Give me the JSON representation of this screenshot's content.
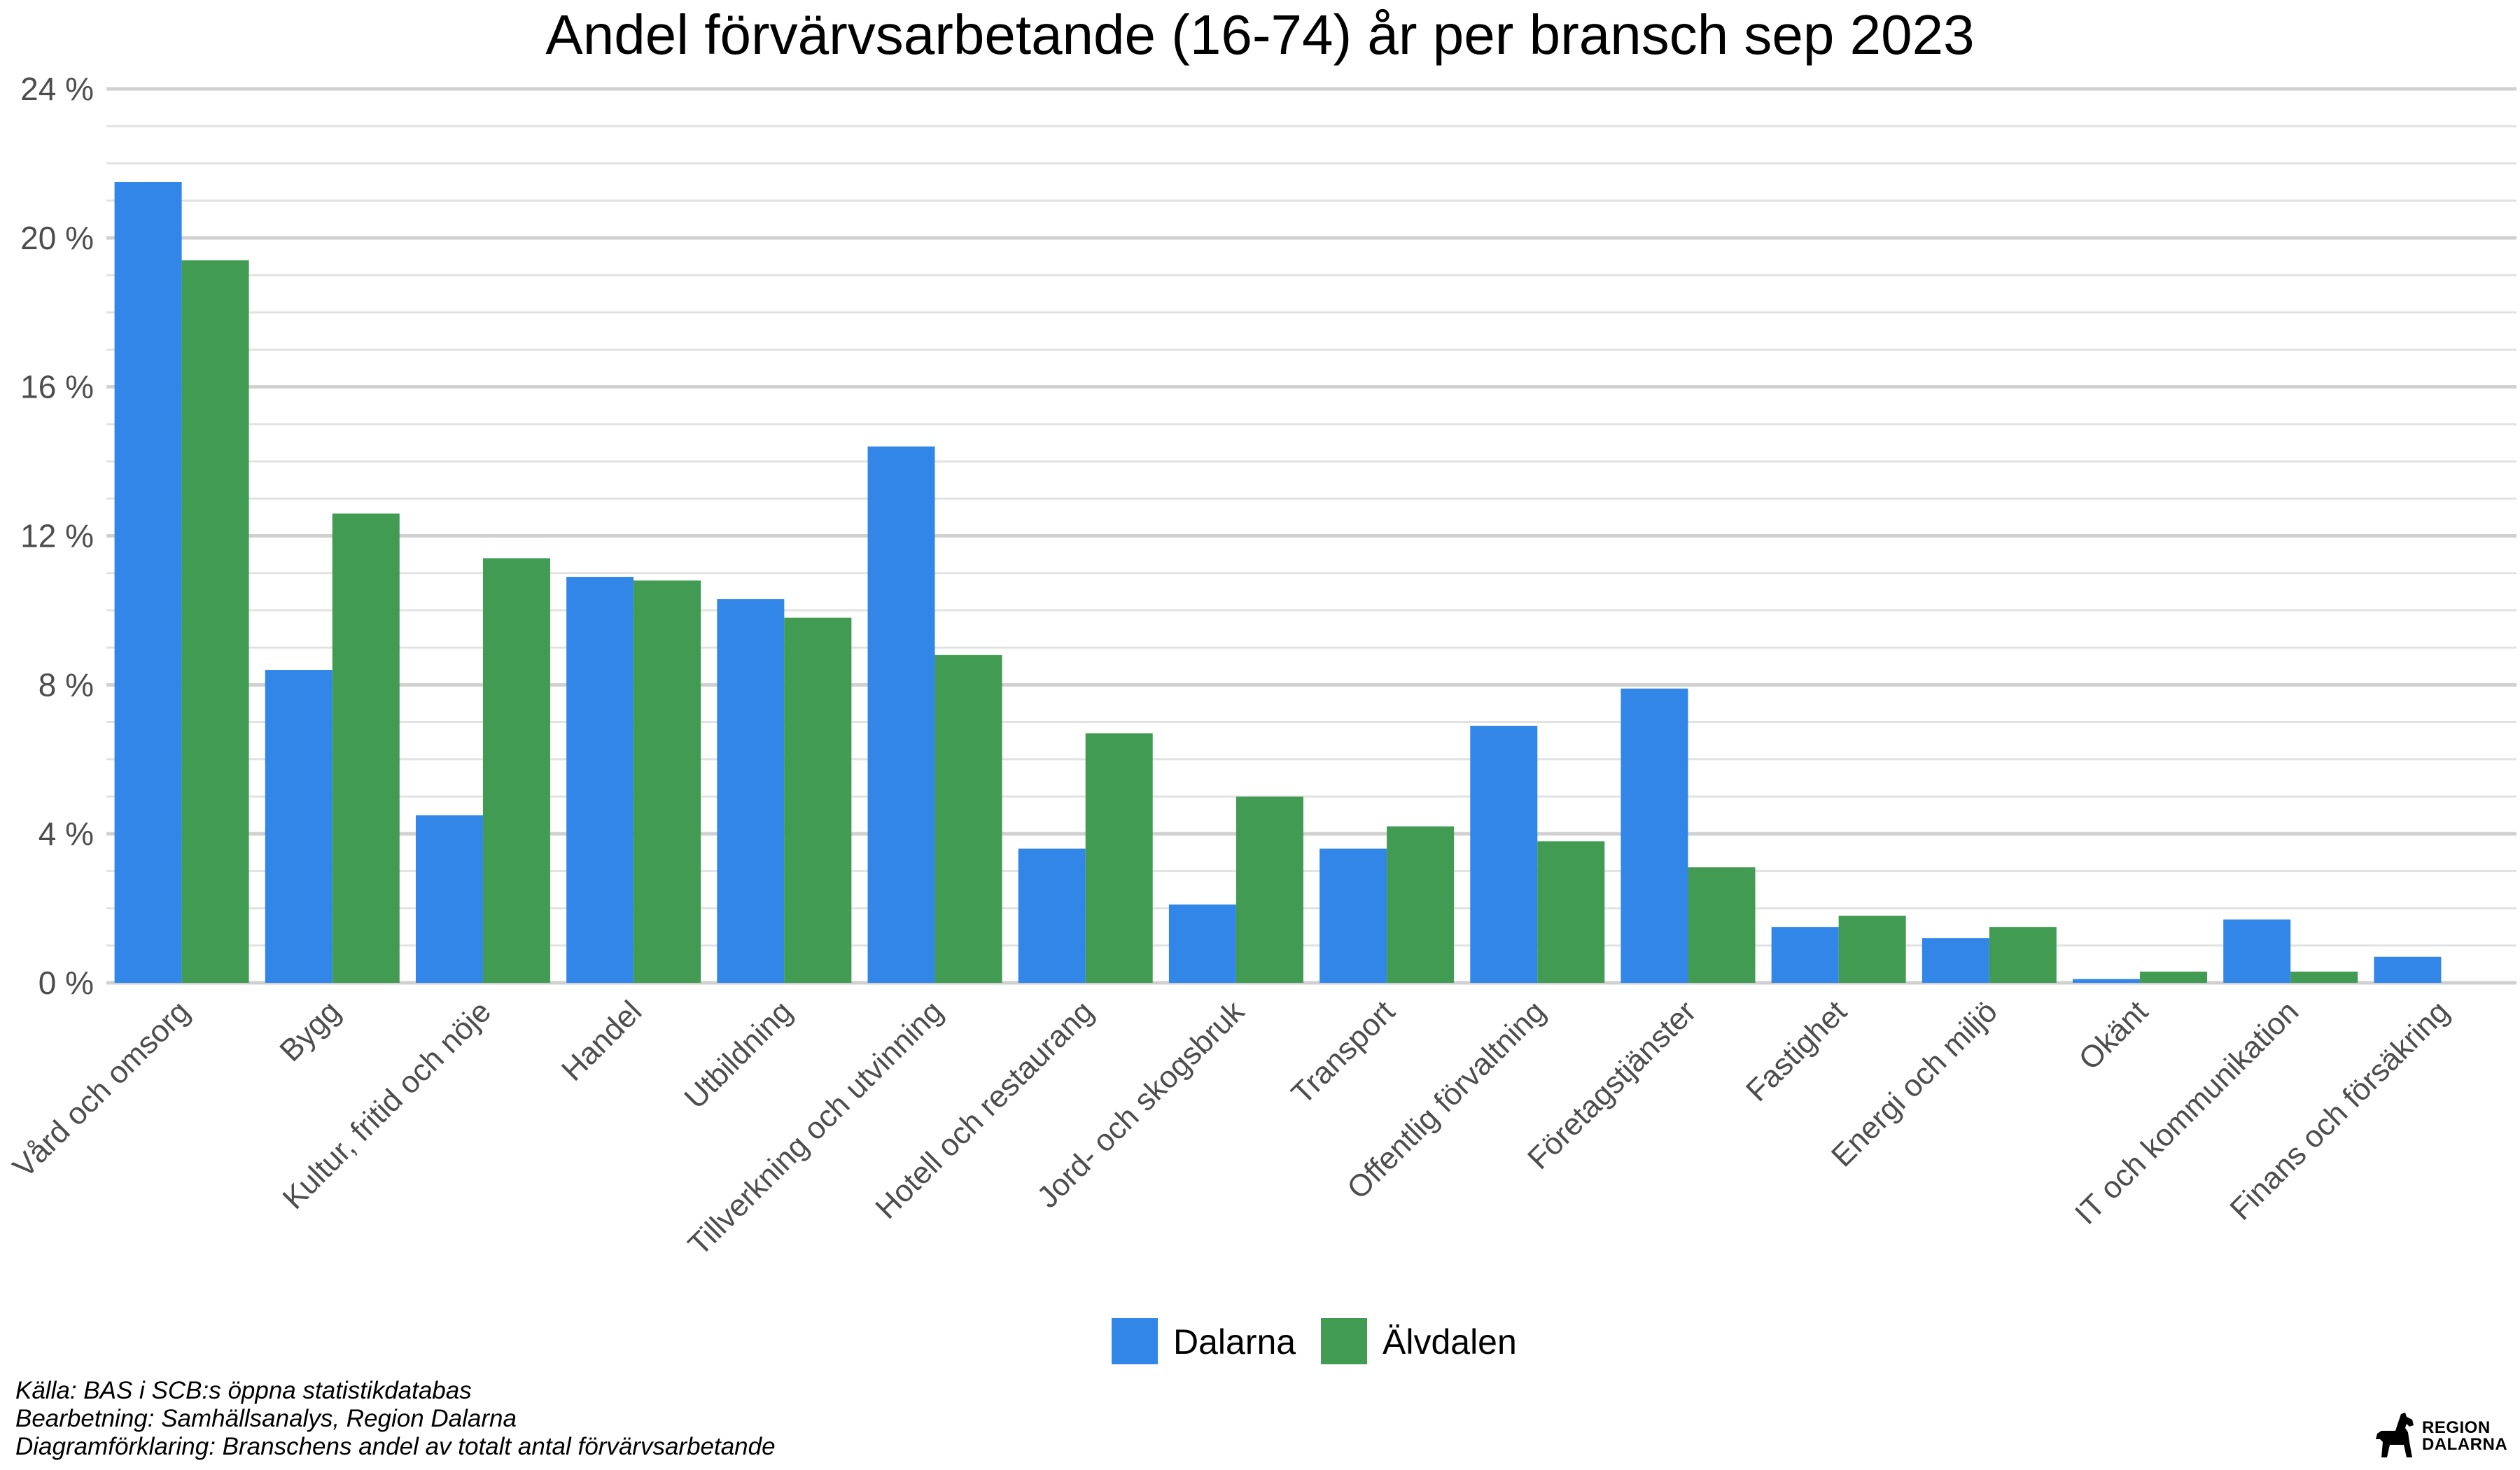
{
  "chart_data": {
    "type": "bar",
    "title": "Andel förvärvsarbetande (16-74) år per bransch sep 2023",
    "xlabel": "",
    "ylabel": "",
    "ylim": [
      0,
      24
    ],
    "yticks": [
      0,
      4,
      8,
      12,
      16,
      20,
      24
    ],
    "ytick_labels": [
      "0 %",
      "4 %",
      "8 %",
      "12 %",
      "16 %",
      "20 %",
      "24 %"
    ],
    "grid": true,
    "legend_position": "bottom",
    "categories": [
      "Vård och omsorg",
      "Bygg",
      "Kultur, fritid och nöje",
      "Handel",
      "Utbildning",
      "Tillverkning och utvinning",
      "Hotell och restaurang",
      "Jord- och skogsbruk",
      "Transport",
      "Offentlig förvaltning",
      "Företagstjänster",
      "Fastighet",
      "Energi och miljö",
      "Okänt",
      "IT och kommunikation",
      "Finans och försäkring"
    ],
    "series": [
      {
        "name": "Dalarna",
        "color": "#3186e8",
        "values": [
          21.5,
          8.4,
          4.5,
          10.9,
          10.3,
          14.4,
          3.6,
          2.1,
          3.6,
          6.9,
          7.9,
          1.5,
          1.2,
          0.1,
          1.7,
          0.7
        ]
      },
      {
        "name": "Älvdalen",
        "color": "#419b52",
        "values": [
          19.4,
          12.6,
          11.4,
          10.8,
          9.8,
          8.8,
          6.7,
          5.0,
          4.2,
          3.8,
          3.1,
          1.8,
          1.5,
          0.3,
          0.3,
          0.0
        ]
      }
    ]
  },
  "captions": [
    "Källa: BAS i SCB:s öppna statistikdatabas",
    "Bearbetning: Samhällsanalys, Region Dalarna",
    "Diagramförklaring: Branschens andel av totalt antal förvärvsarbetande"
  ],
  "logo": {
    "line1": "REGION",
    "line2": "DALARNA",
    "icon": "dala-horse-icon"
  }
}
